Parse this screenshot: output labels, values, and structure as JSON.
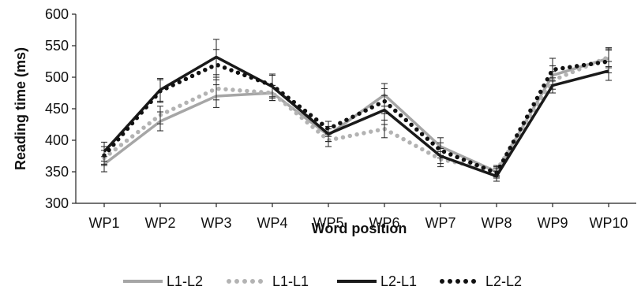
{
  "chart_data": {
    "type": "line",
    "title": "",
    "xlabel": "Word position",
    "ylabel": "Reading time (ms)",
    "ylim": [
      300,
      600
    ],
    "yticks": [
      300,
      350,
      400,
      450,
      500,
      550,
      600
    ],
    "categories": [
      "WP1",
      "WP2",
      "WP3",
      "WP4",
      "WP5",
      "WP6",
      "WP7",
      "WP8",
      "WP9",
      "WP10"
    ],
    "grid": false,
    "legend_position": "bottom",
    "error_bars": true,
    "series": [
      {
        "name": "L1-L2",
        "color": "#a6a6a6",
        "style": "solid",
        "values": [
          362,
          430,
          470,
          475,
          408,
          472,
          390,
          350,
          503,
          530
        ],
        "errors": [
          12,
          15,
          18,
          12,
          10,
          18,
          14,
          8,
          15,
          15
        ]
      },
      {
        "name": "L1-L1",
        "color": "#b3b3b3",
        "style": "dotted",
        "values": [
          372,
          440,
          482,
          475,
          400,
          418,
          370,
          352,
          495,
          532
        ],
        "errors": [
          12,
          14,
          18,
          12,
          10,
          14,
          12,
          8,
          14,
          15
        ]
      },
      {
        "name": "L2-L1",
        "color": "#1a1a1a",
        "style": "solid",
        "values": [
          382,
          480,
          532,
          485,
          410,
          448,
          375,
          343,
          487,
          510
        ],
        "errors": [
          15,
          18,
          28,
          18,
          12,
          23,
          12,
          8,
          12,
          15
        ]
      },
      {
        "name": "L2-L2",
        "color": "#111111",
        "style": "dotted",
        "values": [
          376,
          478,
          520,
          487,
          418,
          462,
          384,
          348,
          512,
          525
        ],
        "errors": [
          14,
          18,
          24,
          18,
          12,
          20,
          12,
          8,
          18,
          18
        ]
      }
    ]
  }
}
